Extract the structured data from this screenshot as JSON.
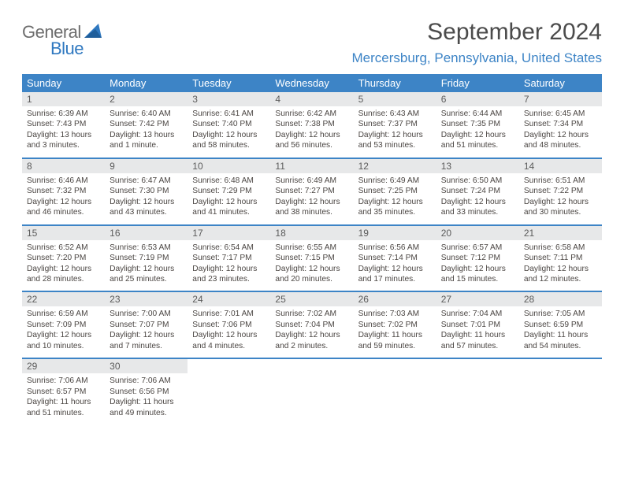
{
  "logo": {
    "text_general": "General",
    "text_blue": "Blue"
  },
  "title": "September 2024",
  "location": "Mercersburg, Pennsylvania, United States",
  "colors": {
    "header_bg": "#3d84c6",
    "daynum_bg": "#e7e8e9",
    "title_color": "#4b4b4b",
    "location_color": "#3d84c6",
    "body_text": "#4b4643",
    "logo_gray": "#6d6d6d",
    "logo_blue": "#2f78c0"
  },
  "day_names": [
    "Sunday",
    "Monday",
    "Tuesday",
    "Wednesday",
    "Thursday",
    "Friday",
    "Saturday"
  ],
  "weeks": [
    [
      {
        "n": "1",
        "sunrise": "Sunrise: 6:39 AM",
        "sunset": "Sunset: 7:43 PM",
        "daylight": "Daylight: 13 hours and 3 minutes."
      },
      {
        "n": "2",
        "sunrise": "Sunrise: 6:40 AM",
        "sunset": "Sunset: 7:42 PM",
        "daylight": "Daylight: 13 hours and 1 minute."
      },
      {
        "n": "3",
        "sunrise": "Sunrise: 6:41 AM",
        "sunset": "Sunset: 7:40 PM",
        "daylight": "Daylight: 12 hours and 58 minutes."
      },
      {
        "n": "4",
        "sunrise": "Sunrise: 6:42 AM",
        "sunset": "Sunset: 7:38 PM",
        "daylight": "Daylight: 12 hours and 56 minutes."
      },
      {
        "n": "5",
        "sunrise": "Sunrise: 6:43 AM",
        "sunset": "Sunset: 7:37 PM",
        "daylight": "Daylight: 12 hours and 53 minutes."
      },
      {
        "n": "6",
        "sunrise": "Sunrise: 6:44 AM",
        "sunset": "Sunset: 7:35 PM",
        "daylight": "Daylight: 12 hours and 51 minutes."
      },
      {
        "n": "7",
        "sunrise": "Sunrise: 6:45 AM",
        "sunset": "Sunset: 7:34 PM",
        "daylight": "Daylight: 12 hours and 48 minutes."
      }
    ],
    [
      {
        "n": "8",
        "sunrise": "Sunrise: 6:46 AM",
        "sunset": "Sunset: 7:32 PM",
        "daylight": "Daylight: 12 hours and 46 minutes."
      },
      {
        "n": "9",
        "sunrise": "Sunrise: 6:47 AM",
        "sunset": "Sunset: 7:30 PM",
        "daylight": "Daylight: 12 hours and 43 minutes."
      },
      {
        "n": "10",
        "sunrise": "Sunrise: 6:48 AM",
        "sunset": "Sunset: 7:29 PM",
        "daylight": "Daylight: 12 hours and 41 minutes."
      },
      {
        "n": "11",
        "sunrise": "Sunrise: 6:49 AM",
        "sunset": "Sunset: 7:27 PM",
        "daylight": "Daylight: 12 hours and 38 minutes."
      },
      {
        "n": "12",
        "sunrise": "Sunrise: 6:49 AM",
        "sunset": "Sunset: 7:25 PM",
        "daylight": "Daylight: 12 hours and 35 minutes."
      },
      {
        "n": "13",
        "sunrise": "Sunrise: 6:50 AM",
        "sunset": "Sunset: 7:24 PM",
        "daylight": "Daylight: 12 hours and 33 minutes."
      },
      {
        "n": "14",
        "sunrise": "Sunrise: 6:51 AM",
        "sunset": "Sunset: 7:22 PM",
        "daylight": "Daylight: 12 hours and 30 minutes."
      }
    ],
    [
      {
        "n": "15",
        "sunrise": "Sunrise: 6:52 AM",
        "sunset": "Sunset: 7:20 PM",
        "daylight": "Daylight: 12 hours and 28 minutes."
      },
      {
        "n": "16",
        "sunrise": "Sunrise: 6:53 AM",
        "sunset": "Sunset: 7:19 PM",
        "daylight": "Daylight: 12 hours and 25 minutes."
      },
      {
        "n": "17",
        "sunrise": "Sunrise: 6:54 AM",
        "sunset": "Sunset: 7:17 PM",
        "daylight": "Daylight: 12 hours and 23 minutes."
      },
      {
        "n": "18",
        "sunrise": "Sunrise: 6:55 AM",
        "sunset": "Sunset: 7:15 PM",
        "daylight": "Daylight: 12 hours and 20 minutes."
      },
      {
        "n": "19",
        "sunrise": "Sunrise: 6:56 AM",
        "sunset": "Sunset: 7:14 PM",
        "daylight": "Daylight: 12 hours and 17 minutes."
      },
      {
        "n": "20",
        "sunrise": "Sunrise: 6:57 AM",
        "sunset": "Sunset: 7:12 PM",
        "daylight": "Daylight: 12 hours and 15 minutes."
      },
      {
        "n": "21",
        "sunrise": "Sunrise: 6:58 AM",
        "sunset": "Sunset: 7:11 PM",
        "daylight": "Daylight: 12 hours and 12 minutes."
      }
    ],
    [
      {
        "n": "22",
        "sunrise": "Sunrise: 6:59 AM",
        "sunset": "Sunset: 7:09 PM",
        "daylight": "Daylight: 12 hours and 10 minutes."
      },
      {
        "n": "23",
        "sunrise": "Sunrise: 7:00 AM",
        "sunset": "Sunset: 7:07 PM",
        "daylight": "Daylight: 12 hours and 7 minutes."
      },
      {
        "n": "24",
        "sunrise": "Sunrise: 7:01 AM",
        "sunset": "Sunset: 7:06 PM",
        "daylight": "Daylight: 12 hours and 4 minutes."
      },
      {
        "n": "25",
        "sunrise": "Sunrise: 7:02 AM",
        "sunset": "Sunset: 7:04 PM",
        "daylight": "Daylight: 12 hours and 2 minutes."
      },
      {
        "n": "26",
        "sunrise": "Sunrise: 7:03 AM",
        "sunset": "Sunset: 7:02 PM",
        "daylight": "Daylight: 11 hours and 59 minutes."
      },
      {
        "n": "27",
        "sunrise": "Sunrise: 7:04 AM",
        "sunset": "Sunset: 7:01 PM",
        "daylight": "Daylight: 11 hours and 57 minutes."
      },
      {
        "n": "28",
        "sunrise": "Sunrise: 7:05 AM",
        "sunset": "Sunset: 6:59 PM",
        "daylight": "Daylight: 11 hours and 54 minutes."
      }
    ],
    [
      {
        "n": "29",
        "sunrise": "Sunrise: 7:06 AM",
        "sunset": "Sunset: 6:57 PM",
        "daylight": "Daylight: 11 hours and 51 minutes."
      },
      {
        "n": "30",
        "sunrise": "Sunrise: 7:06 AM",
        "sunset": "Sunset: 6:56 PM",
        "daylight": "Daylight: 11 hours and 49 minutes."
      },
      {
        "empty": true
      },
      {
        "empty": true
      },
      {
        "empty": true
      },
      {
        "empty": true
      },
      {
        "empty": true
      }
    ]
  ]
}
